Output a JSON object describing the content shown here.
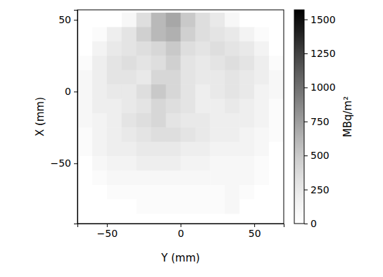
{
  "chart_data": {
    "type": "heatmap",
    "x_label": "Y (mm)",
    "y_label": "X (mm)",
    "colorbar_label": "MBq/m²",
    "color": "Greys",
    "xlim": [
      -70,
      70
    ],
    "ylim": [
      -92,
      57
    ],
    "xticks": [
      {
        "value": -50,
        "label": "−50"
      },
      0,
      50
    ],
    "yticks": [
      {
        "value": -50,
        "label": "−50"
      },
      0,
      50
    ],
    "clim": [
      0,
      1570
    ],
    "cticks": [
      0,
      250,
      500,
      750,
      1000,
      1250,
      1500
    ],
    "x": [
      -65,
      -55,
      -45,
      -35,
      -25,
      -15,
      -5,
      5,
      15,
      25,
      35,
      45,
      55,
      65
    ],
    "y": [
      50,
      40,
      30,
      20,
      10,
      0,
      -10,
      -20,
      -30,
      -40,
      -50,
      -60,
      -70,
      -80
    ],
    "values": [
      [
        0,
        0,
        0,
        100,
        350,
        600,
        700,
        500,
        350,
        250,
        100,
        0,
        0,
        0
      ],
      [
        0,
        50,
        200,
        300,
        450,
        600,
        650,
        450,
        350,
        300,
        250,
        150,
        50,
        0
      ],
      [
        0,
        150,
        250,
        300,
        350,
        400,
        500,
        350,
        300,
        350,
        300,
        250,
        150,
        0
      ],
      [
        50,
        200,
        300,
        350,
        300,
        350,
        450,
        300,
        250,
        300,
        350,
        300,
        200,
        50
      ],
      [
        100,
        200,
        300,
        300,
        250,
        400,
        400,
        300,
        250,
        250,
        300,
        250,
        200,
        100
      ],
      [
        100,
        200,
        250,
        250,
        350,
        500,
        400,
        300,
        200,
        250,
        300,
        250,
        150,
        100
      ],
      [
        100,
        200,
        200,
        250,
        300,
        400,
        350,
        300,
        200,
        200,
        250,
        200,
        150,
        50
      ],
      [
        100,
        150,
        200,
        300,
        350,
        400,
        300,
        250,
        250,
        200,
        200,
        200,
        150,
        50
      ],
      [
        50,
        150,
        200,
        250,
        300,
        350,
        350,
        300,
        250,
        200,
        200,
        150,
        100,
        50
      ],
      [
        50,
        150,
        200,
        200,
        250,
        250,
        250,
        200,
        200,
        150,
        150,
        150,
        100,
        0
      ],
      [
        0,
        100,
        150,
        150,
        200,
        200,
        200,
        150,
        150,
        100,
        100,
        100,
        50,
        0
      ],
      [
        0,
        50,
        100,
        100,
        100,
        100,
        100,
        100,
        100,
        100,
        100,
        100,
        50,
        0
      ],
      [
        0,
        0,
        50,
        50,
        50,
        50,
        50,
        50,
        50,
        50,
        100,
        50,
        0,
        0
      ],
      [
        0,
        0,
        0,
        0,
        50,
        50,
        50,
        50,
        50,
        50,
        100,
        0,
        0,
        0
      ]
    ]
  }
}
